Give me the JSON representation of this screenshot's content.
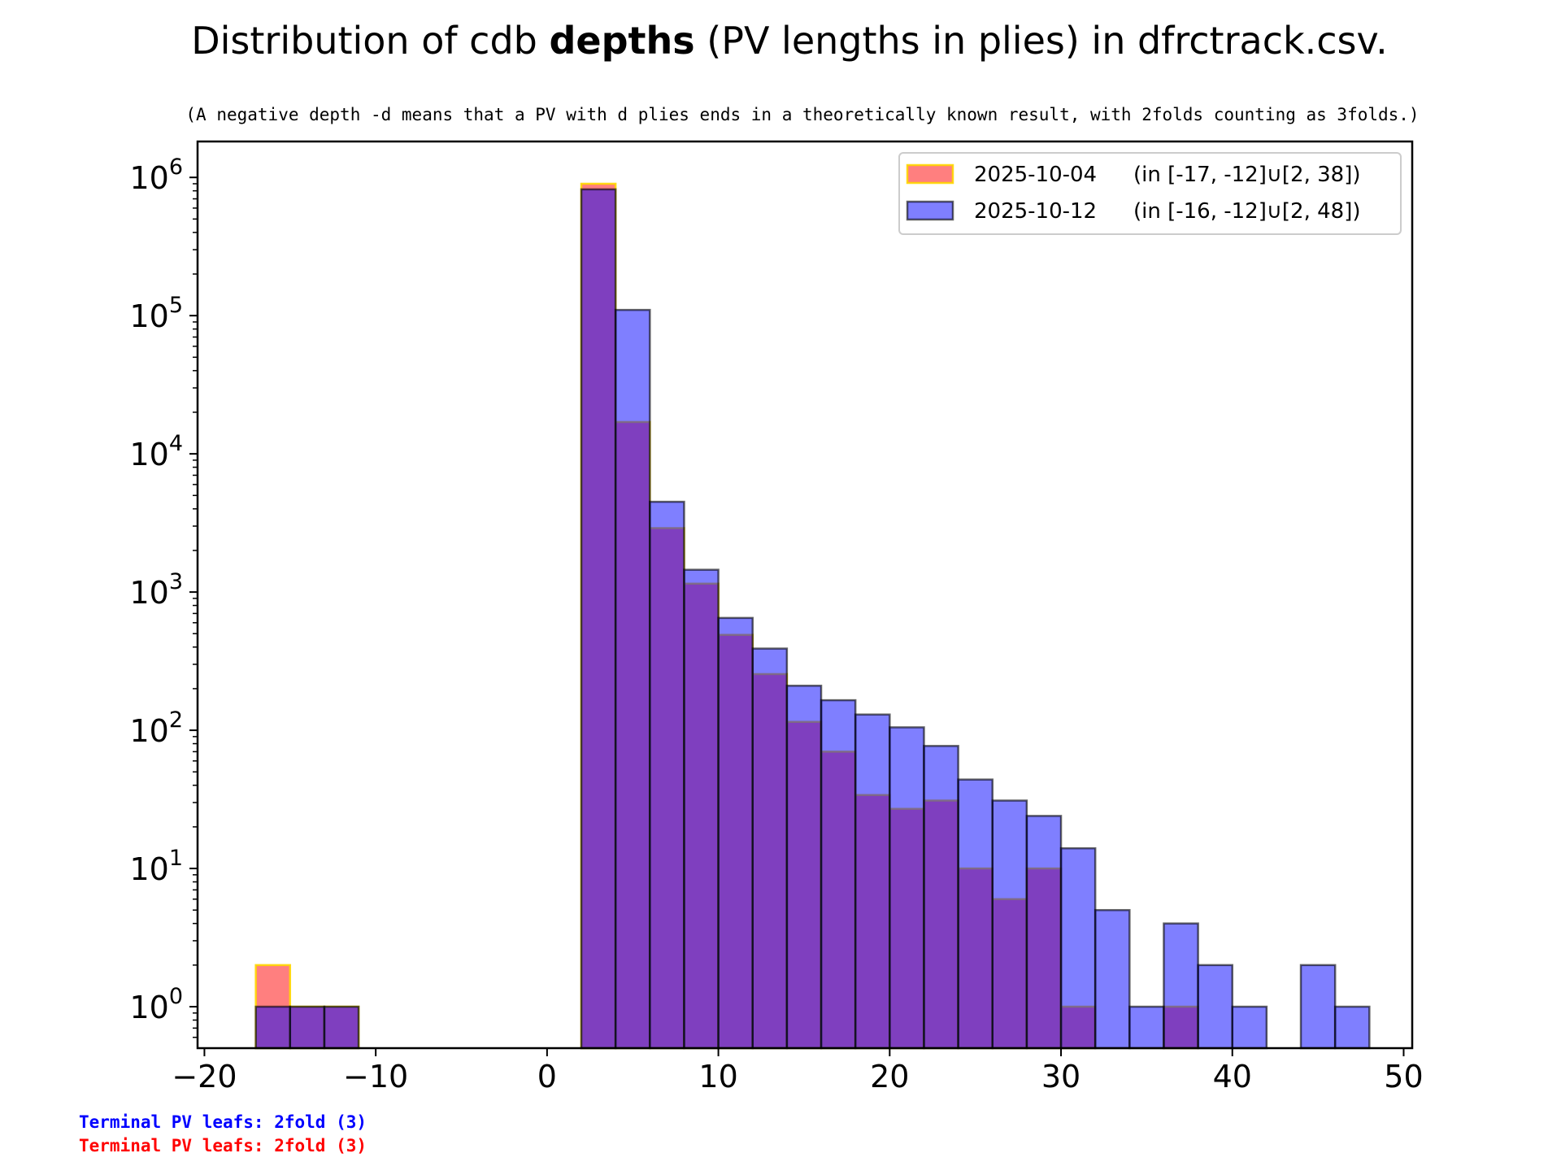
{
  "chart_data": {
    "type": "bar",
    "title_prefix": "Distribution of cdb ",
    "title_bold": "depths",
    "title_suffix": " (PV lengths in plies) in dfrctrack.csv.",
    "subtitle": "(A negative depth -d means that a PV with d plies ends in a theoretically known result, with 2folds counting as 3folds.)",
    "yscale": "log",
    "xlim": [
      -20.4,
      50.5
    ],
    "ylim_exp": [
      -0.3,
      6.26
    ],
    "x_ticks": [
      -20,
      -10,
      0,
      10,
      20,
      30,
      40,
      50
    ],
    "x_tick_labels": [
      "−20",
      "−10",
      "0",
      "10",
      "20",
      "30",
      "40",
      "50"
    ],
    "y_tick_exponents": [
      0,
      1,
      2,
      3,
      4,
      5,
      6
    ],
    "y_tick_base": "10",
    "grid": false,
    "legend_position": "top-right",
    "series": [
      {
        "name": "2025-10-04",
        "range_label": "(in [-17, -12]∪[2, 38])",
        "color": "#ff0000",
        "edge_color": "#ffd700",
        "bins": [
          {
            "x0": -17,
            "x1": -15,
            "count": 2
          },
          {
            "x0": -15,
            "x1": -13,
            "count": 1
          },
          {
            "x0": -13,
            "x1": -11,
            "count": 1
          },
          {
            "x0": 2,
            "x1": 4,
            "count": 900000
          },
          {
            "x0": 4,
            "x1": 6,
            "count": 17000
          },
          {
            "x0": 6,
            "x1": 8,
            "count": 2900
          },
          {
            "x0": 8,
            "x1": 10,
            "count": 1150
          },
          {
            "x0": 10,
            "x1": 12,
            "count": 490
          },
          {
            "x0": 12,
            "x1": 14,
            "count": 255
          },
          {
            "x0": 14,
            "x1": 16,
            "count": 115
          },
          {
            "x0": 16,
            "x1": 18,
            "count": 70
          },
          {
            "x0": 18,
            "x1": 20,
            "count": 34
          },
          {
            "x0": 20,
            "x1": 22,
            "count": 27
          },
          {
            "x0": 22,
            "x1": 24,
            "count": 31
          },
          {
            "x0": 24,
            "x1": 26,
            "count": 10
          },
          {
            "x0": 26,
            "x1": 28,
            "count": 6
          },
          {
            "x0": 28,
            "x1": 30,
            "count": 10
          },
          {
            "x0": 30,
            "x1": 32,
            "count": 1
          },
          {
            "x0": 36,
            "x1": 38,
            "count": 1
          }
        ]
      },
      {
        "name": "2025-10-12",
        "range_label": "(in [-16, -12]∪[2, 48])",
        "color": "#0000ff",
        "edge_color": "#000000",
        "bins": [
          {
            "x0": -17,
            "x1": -15,
            "count": 1
          },
          {
            "x0": -15,
            "x1": -13,
            "count": 1
          },
          {
            "x0": -13,
            "x1": -11,
            "count": 1
          },
          {
            "x0": 2,
            "x1": 4,
            "count": 820000
          },
          {
            "x0": 4,
            "x1": 6,
            "count": 110000
          },
          {
            "x0": 6,
            "x1": 8,
            "count": 4500
          },
          {
            "x0": 8,
            "x1": 10,
            "count": 1450
          },
          {
            "x0": 10,
            "x1": 12,
            "count": 650
          },
          {
            "x0": 12,
            "x1": 14,
            "count": 390
          },
          {
            "x0": 14,
            "x1": 16,
            "count": 210
          },
          {
            "x0": 16,
            "x1": 18,
            "count": 165
          },
          {
            "x0": 18,
            "x1": 20,
            "count": 130
          },
          {
            "x0": 20,
            "x1": 22,
            "count": 105
          },
          {
            "x0": 22,
            "x1": 24,
            "count": 77
          },
          {
            "x0": 24,
            "x1": 26,
            "count": 44
          },
          {
            "x0": 26,
            "x1": 28,
            "count": 31
          },
          {
            "x0": 28,
            "x1": 30,
            "count": 24
          },
          {
            "x0": 30,
            "x1": 32,
            "count": 14
          },
          {
            "x0": 32,
            "x1": 34,
            "count": 5
          },
          {
            "x0": 34,
            "x1": 36,
            "count": 1
          },
          {
            "x0": 36,
            "x1": 38,
            "count": 4
          },
          {
            "x0": 38,
            "x1": 40,
            "count": 2
          },
          {
            "x0": 40,
            "x1": 42,
            "count": 1
          },
          {
            "x0": 44,
            "x1": 46,
            "count": 2
          },
          {
            "x0": 46,
            "x1": 48,
            "count": 1
          }
        ]
      }
    ],
    "footnotes": [
      {
        "text": "Terminal PV leafs: 2fold (3)",
        "color": "#0000ff"
      },
      {
        "text": "Terminal PV leafs: 2fold (3)",
        "color": "#ff0000"
      }
    ]
  }
}
